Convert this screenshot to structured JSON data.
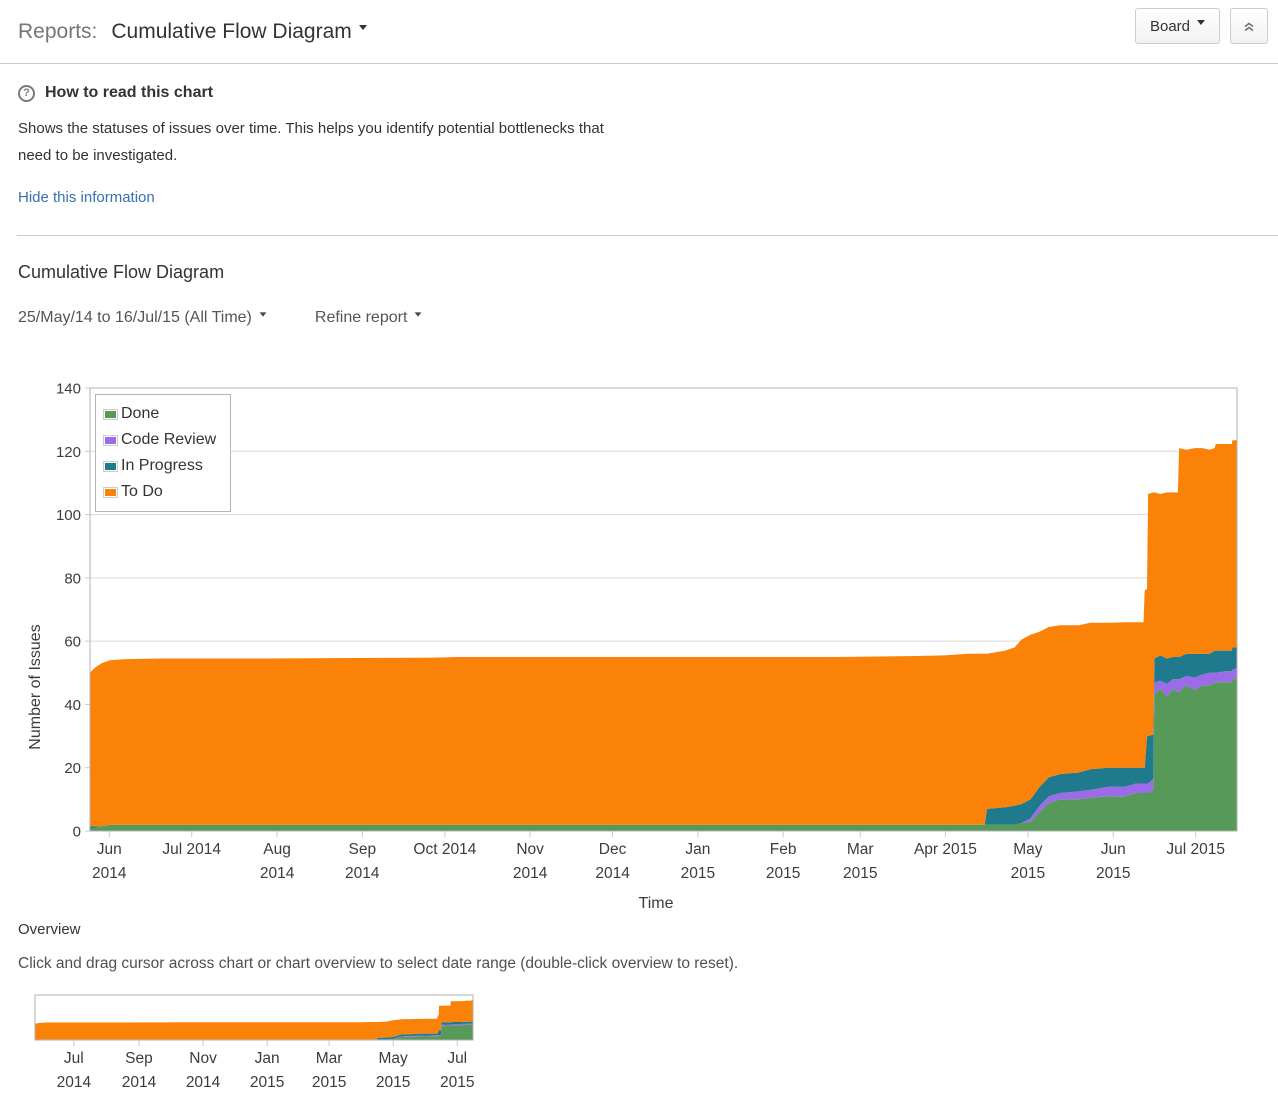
{
  "header": {
    "reports_label": "Reports:",
    "current_report": "Cumulative Flow Diagram",
    "board_button": "Board"
  },
  "info_panel": {
    "title": "How to read this chart",
    "help_icon_glyph": "?",
    "description": "Shows the statuses of issues over time. This helps you identify potential bottlenecks that need to be investigated.",
    "hide_link": "Hide this information"
  },
  "report": {
    "title": "Cumulative Flow Diagram",
    "date_range": "25/May/14 to 16/Jul/15 (All Time)",
    "refine_label": "Refine report"
  },
  "overview": {
    "label": "Overview",
    "instruction": "Click and drag cursor across chart or chart overview to select date range (double-click overview to reset)."
  },
  "chart_data": {
    "type": "area",
    "stacked": true,
    "title": "Cumulative Flow Diagram",
    "xlabel": "Time",
    "ylabel": "Number of Issues",
    "ylim": [
      0,
      140
    ],
    "y_ticks": [
      0,
      20,
      40,
      60,
      80,
      100,
      120,
      140
    ],
    "x_range": [
      "25/May/14",
      "16/Jul/15"
    ],
    "legend": [
      "Done",
      "Code Review",
      "In Progress",
      "To Do"
    ],
    "legend_position": "top-left",
    "grid": "horizontal",
    "series_bottom_to_top": [
      "Done",
      "Code Review",
      "In Progress",
      "To Do"
    ],
    "colors": {
      "Done": "#579958",
      "Code Review": "#9b6be8",
      "In Progress": "#1e7a8c",
      "To Do": "#fb8208"
    },
    "x_ticks_main": [
      {
        "f": 0.0168,
        "lines": [
          "Jun",
          "2014"
        ]
      },
      {
        "f": 0.0887,
        "lines": [
          "Jul 2014"
        ]
      },
      {
        "f": 0.1631,
        "lines": [
          "Aug",
          "2014"
        ]
      },
      {
        "f": 0.2374,
        "lines": [
          "Sep",
          "2014"
        ]
      },
      {
        "f": 0.3094,
        "lines": [
          "Oct 2014"
        ]
      },
      {
        "f": 0.3837,
        "lines": [
          "Nov",
          "2014"
        ]
      },
      {
        "f": 0.4556,
        "lines": [
          "Dec",
          "2014"
        ]
      },
      {
        "f": 0.53,
        "lines": [
          "Jan",
          "2015"
        ]
      },
      {
        "f": 0.6043,
        "lines": [
          "Feb",
          "2015"
        ]
      },
      {
        "f": 0.6715,
        "lines": [
          "Mar",
          "2015"
        ]
      },
      {
        "f": 0.7458,
        "lines": [
          "Apr 2015"
        ]
      },
      {
        "f": 0.8177,
        "lines": [
          "May",
          "2015"
        ]
      },
      {
        "f": 0.8921,
        "lines": [
          "Jun",
          "2015"
        ]
      },
      {
        "f": 0.964,
        "lines": [
          "Jul 2015"
        ]
      }
    ],
    "x_ticks_overview": [
      {
        "f": 0.0887,
        "lines": [
          "Jul",
          "2014"
        ]
      },
      {
        "f": 0.2374,
        "lines": [
          "Sep",
          "2014"
        ]
      },
      {
        "f": 0.3837,
        "lines": [
          "Nov",
          "2014"
        ]
      },
      {
        "f": 0.53,
        "lines": [
          "Jan",
          "2015"
        ]
      },
      {
        "f": 0.6715,
        "lines": [
          "Mar",
          "2015"
        ]
      },
      {
        "f": 0.8177,
        "lines": [
          "May",
          "2015"
        ]
      },
      {
        "f": 0.964,
        "lines": [
          "Jul",
          "2015"
        ]
      }
    ],
    "samples_format": [
      "x_fraction_of_range",
      "Done",
      "Code Review",
      "In Progress",
      "To Do"
    ],
    "samples": [
      [
        0.0,
        0.5,
        0,
        1,
        48.5
      ],
      [
        0.004,
        1,
        0,
        0.5,
        50
      ],
      [
        0.01,
        1.5,
        0,
        0,
        51.5
      ],
      [
        0.018,
        2,
        0,
        0,
        52
      ],
      [
        0.03,
        2,
        0,
        0,
        52.3
      ],
      [
        0.06,
        2,
        0,
        0,
        52.5
      ],
      [
        0.15,
        2,
        0,
        0,
        52.5
      ],
      [
        0.25,
        2,
        0,
        0,
        52.7
      ],
      [
        0.3,
        2,
        0,
        0,
        52.8
      ],
      [
        0.32,
        2,
        0,
        0,
        53
      ],
      [
        0.5,
        2,
        0,
        0,
        53
      ],
      [
        0.65,
        2,
        0,
        0,
        53
      ],
      [
        0.72,
        2,
        0,
        0,
        53.3
      ],
      [
        0.745,
        2,
        0,
        0,
        53.5
      ],
      [
        0.765,
        2,
        0,
        0,
        54
      ],
      [
        0.78,
        2,
        0,
        0,
        54
      ],
      [
        0.782,
        2,
        0,
        5,
        49
      ],
      [
        0.798,
        2,
        0,
        5.5,
        49.5
      ],
      [
        0.806,
        2,
        0,
        6,
        50
      ],
      [
        0.812,
        2.5,
        0,
        6,
        52
      ],
      [
        0.82,
        3,
        1,
        6,
        52
      ],
      [
        0.828,
        6,
        2,
        6,
        49
      ],
      [
        0.836,
        9,
        2,
        6,
        47.5
      ],
      [
        0.846,
        10,
        2,
        6,
        47
      ],
      [
        0.862,
        10,
        2.5,
        6,
        46.5
      ],
      [
        0.872,
        10.5,
        2.5,
        6.5,
        46.3
      ],
      [
        0.888,
        11,
        3,
        6,
        45.8
      ],
      [
        0.902,
        11,
        3,
        6,
        46
      ],
      [
        0.912,
        12,
        3,
        5,
        46
      ],
      [
        0.9185,
        12,
        3,
        5,
        46
      ],
      [
        0.9195,
        12,
        3,
        5,
        56
      ],
      [
        0.9215,
        12,
        3,
        15,
        46.5
      ],
      [
        0.9225,
        12,
        3,
        15,
        76.5
      ],
      [
        0.927,
        13,
        3.5,
        14,
        76.5
      ],
      [
        0.928,
        43,
        4,
        7.5,
        52.5
      ],
      [
        0.933,
        45,
        2.5,
        8,
        51
      ],
      [
        0.939,
        42.5,
        4,
        8,
        52.5
      ],
      [
        0.944,
        45,
        3,
        7,
        52
      ],
      [
        0.9485,
        44,
        4,
        7,
        52
      ],
      [
        0.9495,
        44,
        4,
        7,
        66
      ],
      [
        0.956,
        46,
        3,
        7,
        64.5
      ],
      [
        0.963,
        44.5,
        4,
        7.5,
        65
      ],
      [
        0.97,
        46,
        3.5,
        6.5,
        65
      ],
      [
        0.976,
        46,
        4,
        6,
        64.5
      ],
      [
        0.9805,
        47,
        3,
        7,
        64
      ],
      [
        0.9815,
        47,
        3,
        7,
        65.3
      ],
      [
        0.99,
        47,
        3.5,
        6.5,
        65.3
      ],
      [
        0.9955,
        47,
        3.5,
        6.5,
        65.3
      ],
      [
        0.996,
        48,
        3,
        7,
        65.5
      ],
      [
        1.0,
        48,
        3.5,
        6.5,
        65.5
      ]
    ]
  }
}
